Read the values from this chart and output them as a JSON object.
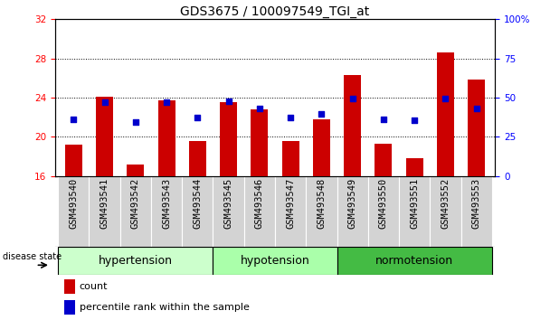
{
  "title": "GDS3675 / 100097549_TGI_at",
  "samples": [
    "GSM493540",
    "GSM493541",
    "GSM493542",
    "GSM493543",
    "GSM493544",
    "GSM493545",
    "GSM493546",
    "GSM493547",
    "GSM493548",
    "GSM493549",
    "GSM493550",
    "GSM493551",
    "GSM493552",
    "GSM493553"
  ],
  "bar_values": [
    19.2,
    24.1,
    17.2,
    23.7,
    19.6,
    23.5,
    22.8,
    19.6,
    21.8,
    26.3,
    19.3,
    17.8,
    28.6,
    25.8
  ],
  "dot_values": [
    21.8,
    23.5,
    21.5,
    23.5,
    22.0,
    23.6,
    22.9,
    22.0,
    22.3,
    23.9,
    21.8,
    21.7,
    23.9,
    22.9
  ],
  "ylim_left": [
    16,
    32
  ],
  "ylim_right": [
    0,
    100
  ],
  "yticks_left": [
    16,
    20,
    24,
    28,
    32
  ],
  "yticks_right": [
    0,
    25,
    50,
    75,
    100
  ],
  "bar_color": "#cc0000",
  "dot_color": "#0000cc",
  "bar_width": 0.55,
  "groups": [
    {
      "label": "hypertension",
      "start": 0,
      "end": 4,
      "color": "#ccffcc"
    },
    {
      "label": "hypotension",
      "start": 5,
      "end": 8,
      "color": "#aaffaa"
    },
    {
      "label": "normotension",
      "start": 9,
      "end": 13,
      "color": "#44bb44"
    }
  ],
  "disease_state_label": "disease state",
  "legend_count_label": "count",
  "legend_percentile_label": "percentile rank within the sample",
  "grid_yticks": [
    20,
    24,
    28
  ],
  "title_fontsize": 10,
  "tick_fontsize": 7.5,
  "group_fontsize": 9,
  "legend_fontsize": 8
}
